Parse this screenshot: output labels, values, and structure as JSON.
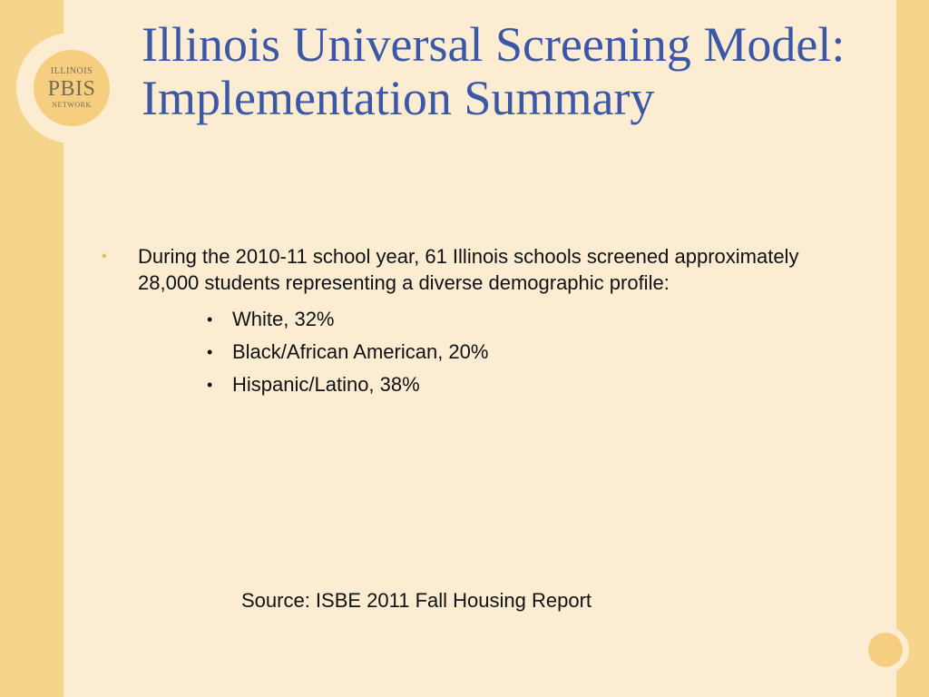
{
  "logo": {
    "top": "ILLINOIS",
    "middle": "PBIS",
    "bottom": "NETWORK"
  },
  "title": "Illinois Universal Screening Model: Implementation Summary",
  "content": {
    "main_text": "During the 2010-11 school year, 61 Illinois schools screened approximately 28,000 students representing a diverse demographic profile:",
    "subbullets": [
      "White, 32%",
      "Black/African American, 20%",
      "Hispanic/Latino, 38%"
    ]
  },
  "source": "Source: ISBE 2011 Fall Housing Report",
  "colors": {
    "accent": "#f5d58b",
    "panel": "#fbecd2",
    "title": "#3c57a6",
    "bullet": "#e5b85b"
  }
}
